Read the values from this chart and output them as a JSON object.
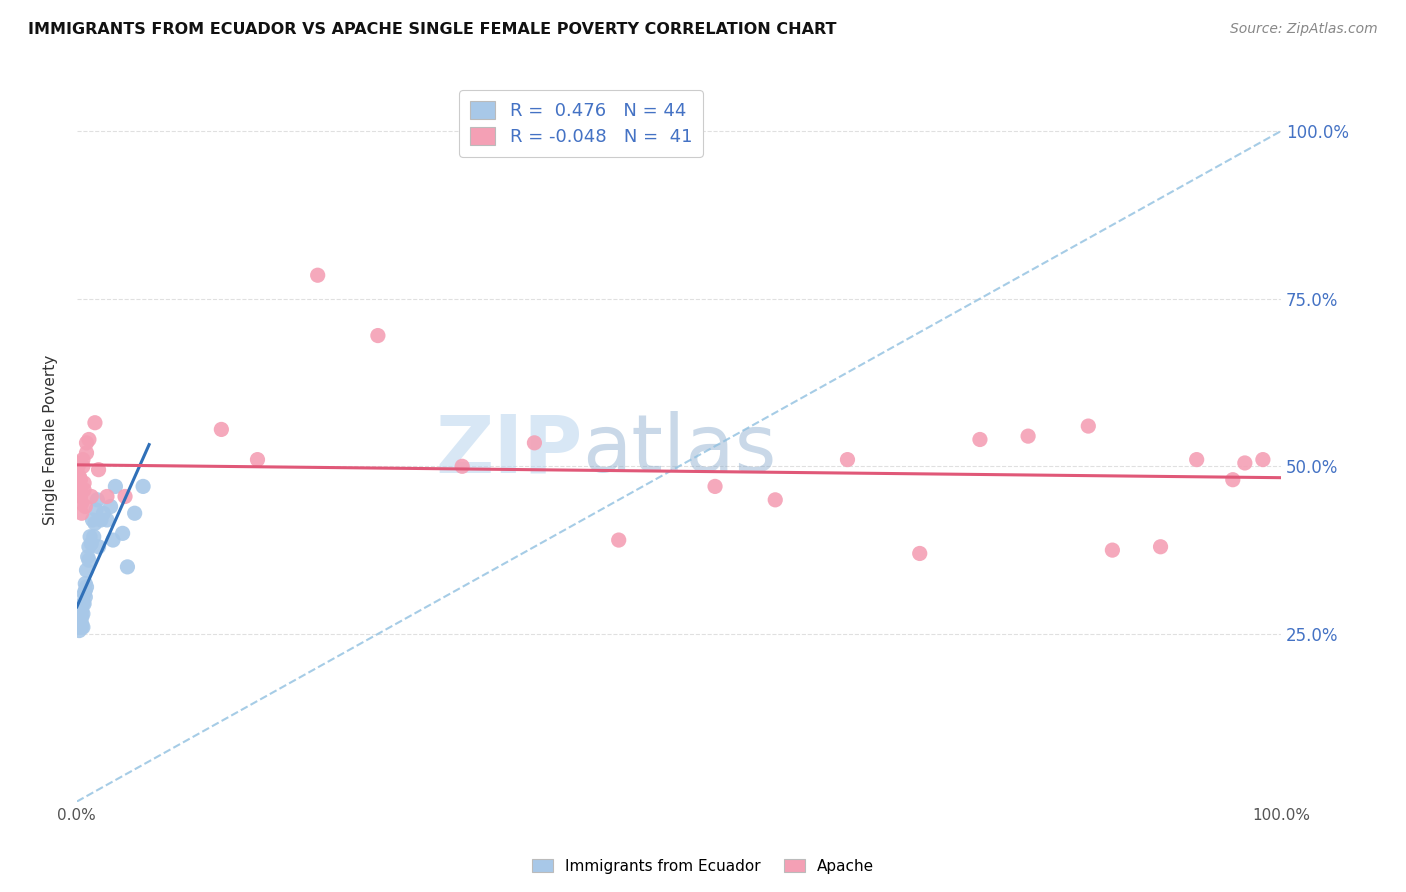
{
  "title": "IMMIGRANTS FROM ECUADOR VS APACHE SINGLE FEMALE POVERTY CORRELATION CHART",
  "source": "Source: ZipAtlas.com",
  "ylabel": "Single Female Poverty",
  "ytick_labels": [
    "100.0%",
    "75.0%",
    "50.0%",
    "25.0%"
  ],
  "ytick_positions": [
    1.0,
    0.75,
    0.5,
    0.25
  ],
  "watermark_zip": "ZIP",
  "watermark_atlas": "atlas",
  "legend_label1": "Immigrants from Ecuador",
  "legend_label2": "Apache",
  "R1": 0.476,
  "N1": 44,
  "R2": -0.048,
  "N2": 41,
  "color_blue": "#a8c8e8",
  "color_pink": "#f4a0b5",
  "color_trendline_blue": "#3070b8",
  "color_trendline_pink": "#e05878",
  "color_dashed": "#90c0e0",
  "blue_x": [
    0.001,
    0.001,
    0.002,
    0.002,
    0.002,
    0.003,
    0.003,
    0.003,
    0.003,
    0.004,
    0.004,
    0.004,
    0.004,
    0.005,
    0.005,
    0.005,
    0.006,
    0.006,
    0.007,
    0.007,
    0.007,
    0.008,
    0.008,
    0.009,
    0.01,
    0.01,
    0.011,
    0.012,
    0.013,
    0.014,
    0.015,
    0.016,
    0.017,
    0.018,
    0.02,
    0.022,
    0.025,
    0.028,
    0.03,
    0.032,
    0.038,
    0.042,
    0.048,
    0.055
  ],
  "blue_y": [
    0.265,
    0.27,
    0.255,
    0.26,
    0.275,
    0.26,
    0.265,
    0.27,
    0.28,
    0.26,
    0.265,
    0.275,
    0.285,
    0.26,
    0.28,
    0.295,
    0.295,
    0.31,
    0.305,
    0.315,
    0.325,
    0.32,
    0.345,
    0.365,
    0.36,
    0.38,
    0.395,
    0.385,
    0.42,
    0.395,
    0.415,
    0.435,
    0.45,
    0.38,
    0.42,
    0.43,
    0.42,
    0.44,
    0.39,
    0.47,
    0.4,
    0.35,
    0.43,
    0.47
  ],
  "pink_x": [
    0.001,
    0.002,
    0.002,
    0.003,
    0.003,
    0.003,
    0.004,
    0.004,
    0.005,
    0.005,
    0.006,
    0.006,
    0.007,
    0.008,
    0.008,
    0.01,
    0.012,
    0.015,
    0.018,
    0.025,
    0.04,
    0.12,
    0.15,
    0.2,
    0.25,
    0.32,
    0.38,
    0.45,
    0.53,
    0.58,
    0.64,
    0.7,
    0.75,
    0.79,
    0.84,
    0.86,
    0.9,
    0.93,
    0.96,
    0.97,
    0.985
  ],
  "pink_y": [
    0.5,
    0.485,
    0.505,
    0.455,
    0.465,
    0.48,
    0.43,
    0.445,
    0.5,
    0.51,
    0.465,
    0.475,
    0.44,
    0.52,
    0.535,
    0.54,
    0.455,
    0.565,
    0.495,
    0.455,
    0.455,
    0.555,
    0.51,
    0.785,
    0.695,
    0.5,
    0.535,
    0.39,
    0.47,
    0.45,
    0.51,
    0.37,
    0.54,
    0.545,
    0.56,
    0.375,
    0.38,
    0.51,
    0.48,
    0.505,
    0.51
  ],
  "xlim": [
    0.0,
    1.0
  ],
  "ylim": [
    0.0,
    1.08
  ],
  "background_color": "#ffffff",
  "grid_color": "#e0e0e0"
}
